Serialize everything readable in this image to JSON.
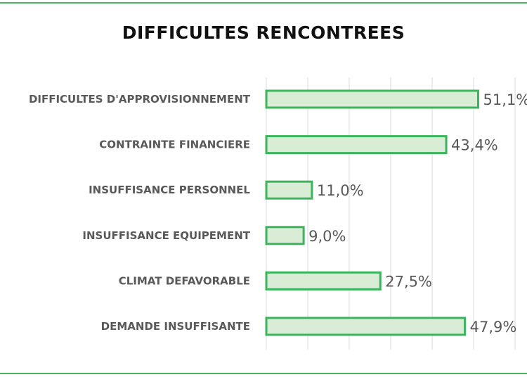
{
  "chart_data": {
    "type": "bar",
    "orientation": "horizontal",
    "title": "DIFFICULTES RENCONTREES",
    "categories": [
      "DIFFICULTES D'APPROVISIONNEMENT",
      "CONTRAINTE FINANCIERE",
      "INSUFFISANCE PERSONNEL",
      "INSUFFISANCE EQUIPEMENT",
      "CLIMAT DEFAVORABLE",
      "DEMANDE INSUFFISANTE"
    ],
    "values": [
      51.1,
      43.4,
      11.0,
      9.0,
      27.5,
      47.9
    ],
    "value_labels": [
      "51,1%",
      "43,4%",
      "11,0%",
      "9,0%",
      "27,5%",
      "47,9%"
    ],
    "xlim": [
      0,
      60
    ],
    "grid": "vertical lines every 10",
    "legend": "none",
    "colors": {
      "bar_fill": "#d9ecd6",
      "bar_stroke": "#3cb45c",
      "frame": "#4caf6a",
      "text": "#595959"
    }
  }
}
